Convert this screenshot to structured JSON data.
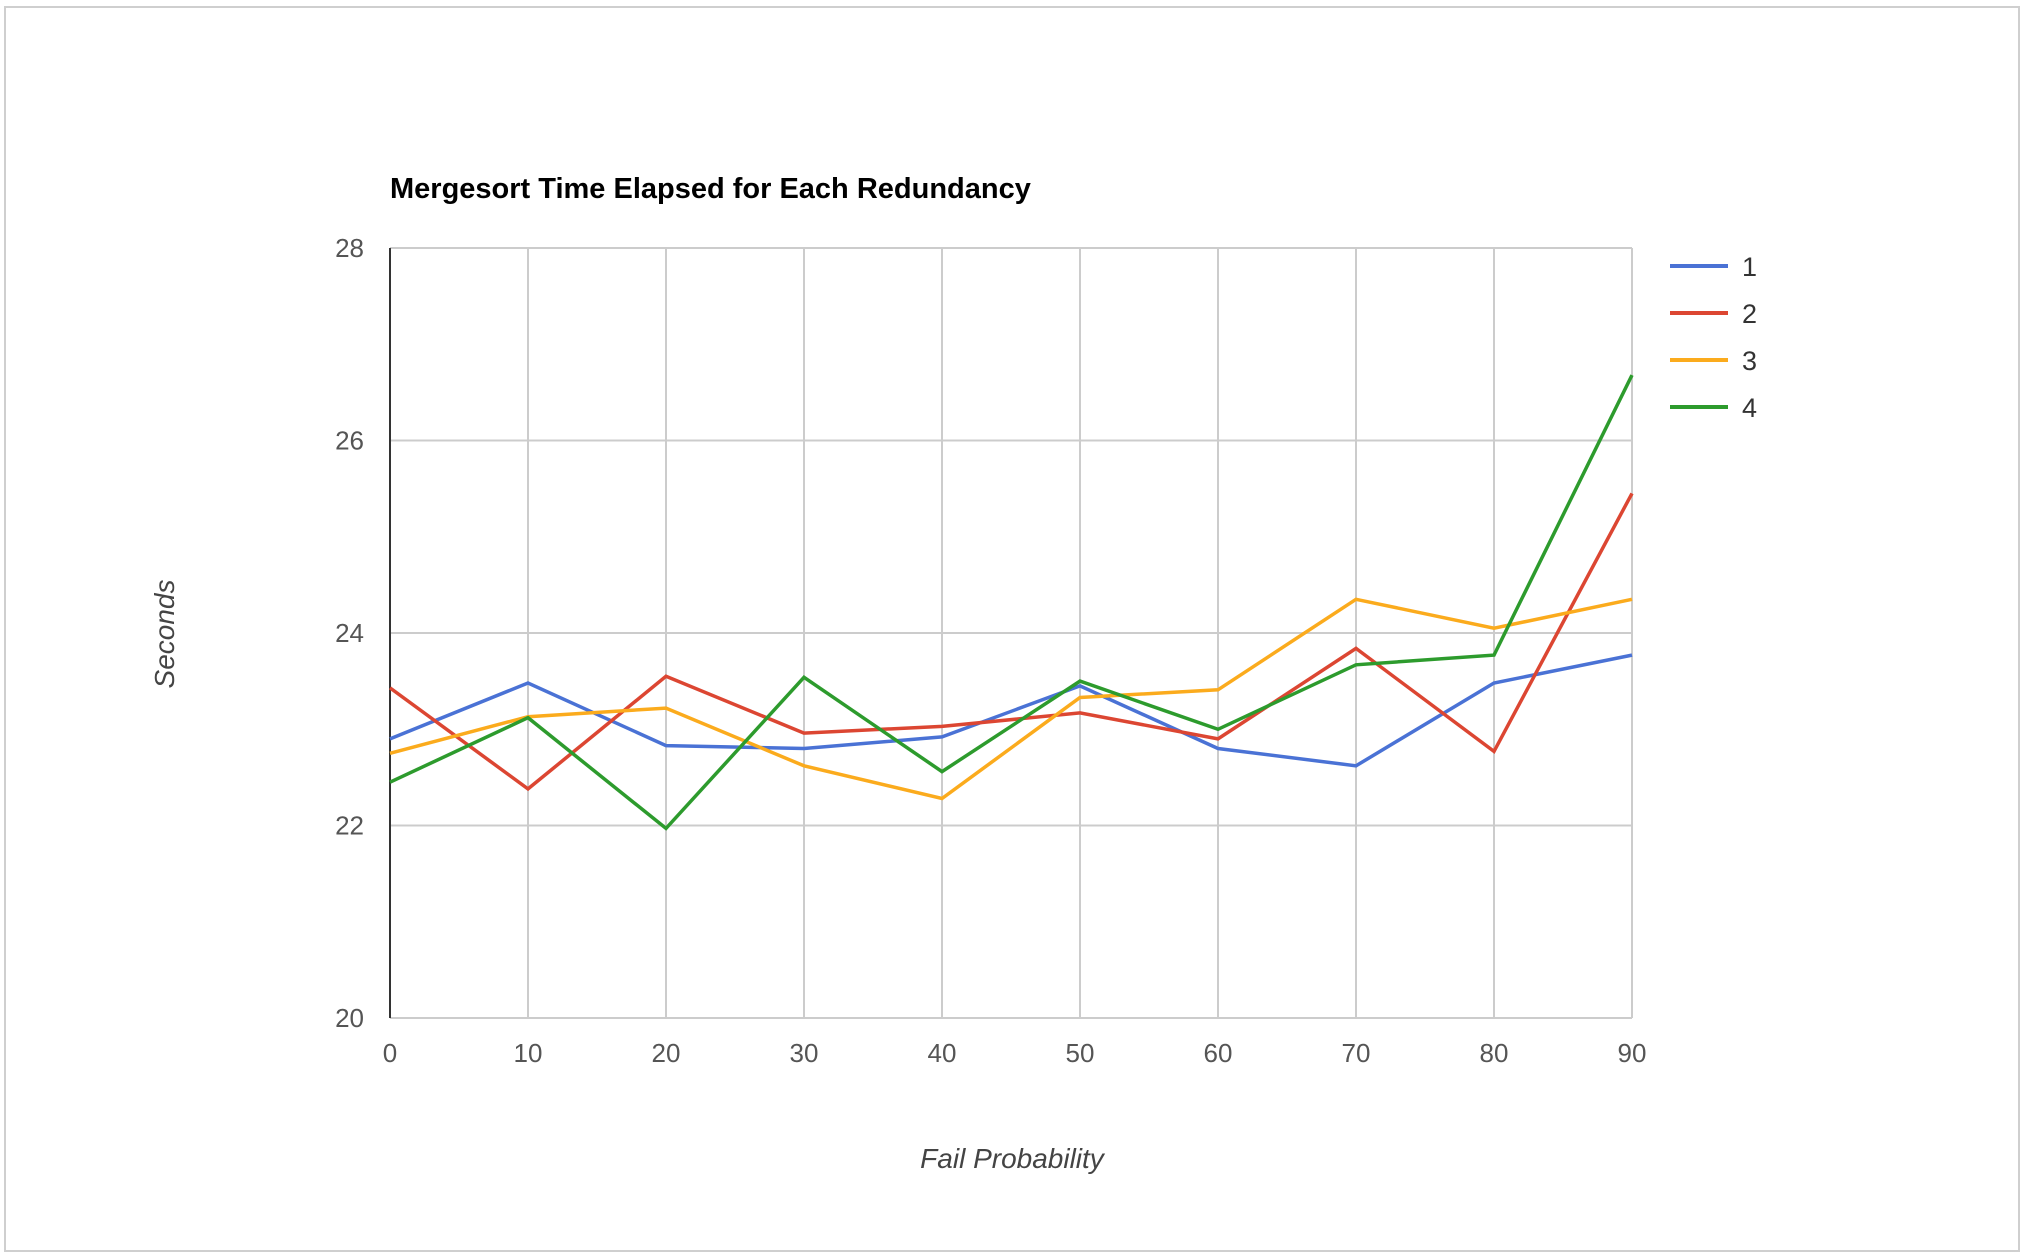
{
  "chart_data": {
    "type": "line",
    "title": "Mergesort Time Elapsed for Each Redundancy",
    "xlabel": "Fail Probability",
    "ylabel": "Seconds",
    "x": [
      0,
      10,
      20,
      30,
      40,
      50,
      60,
      70,
      80,
      90
    ],
    "xticks": [
      "0",
      "10",
      "20",
      "30",
      "40",
      "50",
      "60",
      "70",
      "80",
      "90"
    ],
    "yticks": [
      "20",
      "22",
      "24",
      "26",
      "28"
    ],
    "xlim": [
      0,
      90
    ],
    "ylim": [
      20,
      28
    ],
    "grid": true,
    "legend_position": "right",
    "series": [
      {
        "name": "1",
        "color": "#4a72d5",
        "values": [
          22.9,
          23.48,
          22.83,
          22.8,
          22.92,
          23.45,
          22.8,
          22.62,
          23.48,
          23.77
        ]
      },
      {
        "name": "2",
        "color": "#dc4632",
        "values": [
          23.43,
          22.38,
          23.55,
          22.96,
          23.03,
          23.17,
          22.9,
          23.84,
          22.77,
          25.45
        ]
      },
      {
        "name": "3",
        "color": "#fbab1d",
        "values": [
          22.75,
          23.13,
          23.22,
          22.62,
          22.28,
          23.33,
          23.41,
          24.35,
          24.05,
          24.35
        ]
      },
      {
        "name": "4",
        "color": "#2d9b2d",
        "values": [
          22.45,
          23.12,
          21.97,
          23.54,
          22.56,
          23.5,
          23.0,
          23.67,
          23.77,
          26.68
        ]
      }
    ]
  }
}
